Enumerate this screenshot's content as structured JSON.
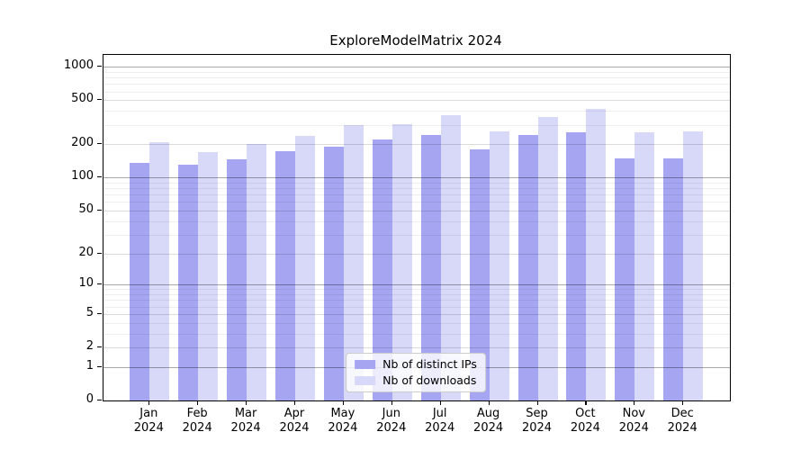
{
  "title": "ExploreModelMatrix 2024",
  "chart_data": {
    "type": "bar",
    "title": "ExploreModelMatrix 2024",
    "xlabel": "",
    "ylabel": "",
    "scale": "log10(1+y)",
    "grid": true,
    "legend_position": "lower center",
    "categories": [
      "Jan",
      "Feb",
      "Mar",
      "Apr",
      "May",
      "Jun",
      "Jul",
      "Aug",
      "Sep",
      "Oct",
      "Nov",
      "Dec"
    ],
    "year_label": "2024",
    "y_ticks": [
      0,
      1,
      2,
      5,
      10,
      20,
      50,
      100,
      200,
      500,
      1000
    ],
    "ylim": [
      0,
      1280
    ],
    "series": [
      {
        "name": "Nb of distinct IPs",
        "color": "#a5a5f2",
        "values": [
          135,
          130,
          146,
          175,
          190,
          222,
          245,
          180,
          241,
          257,
          148,
          150
        ]
      },
      {
        "name": "Nb of downloads",
        "color": "#d8d8f9",
        "values": [
          210,
          170,
          202,
          238,
          296,
          305,
          365,
          261,
          350,
          415,
          255,
          262
        ]
      }
    ]
  },
  "colors": {
    "distinct_ips": "#a5a5f2",
    "downloads": "#d8d8f9",
    "spine": "#000000",
    "legend_border": "#cccccc"
  }
}
